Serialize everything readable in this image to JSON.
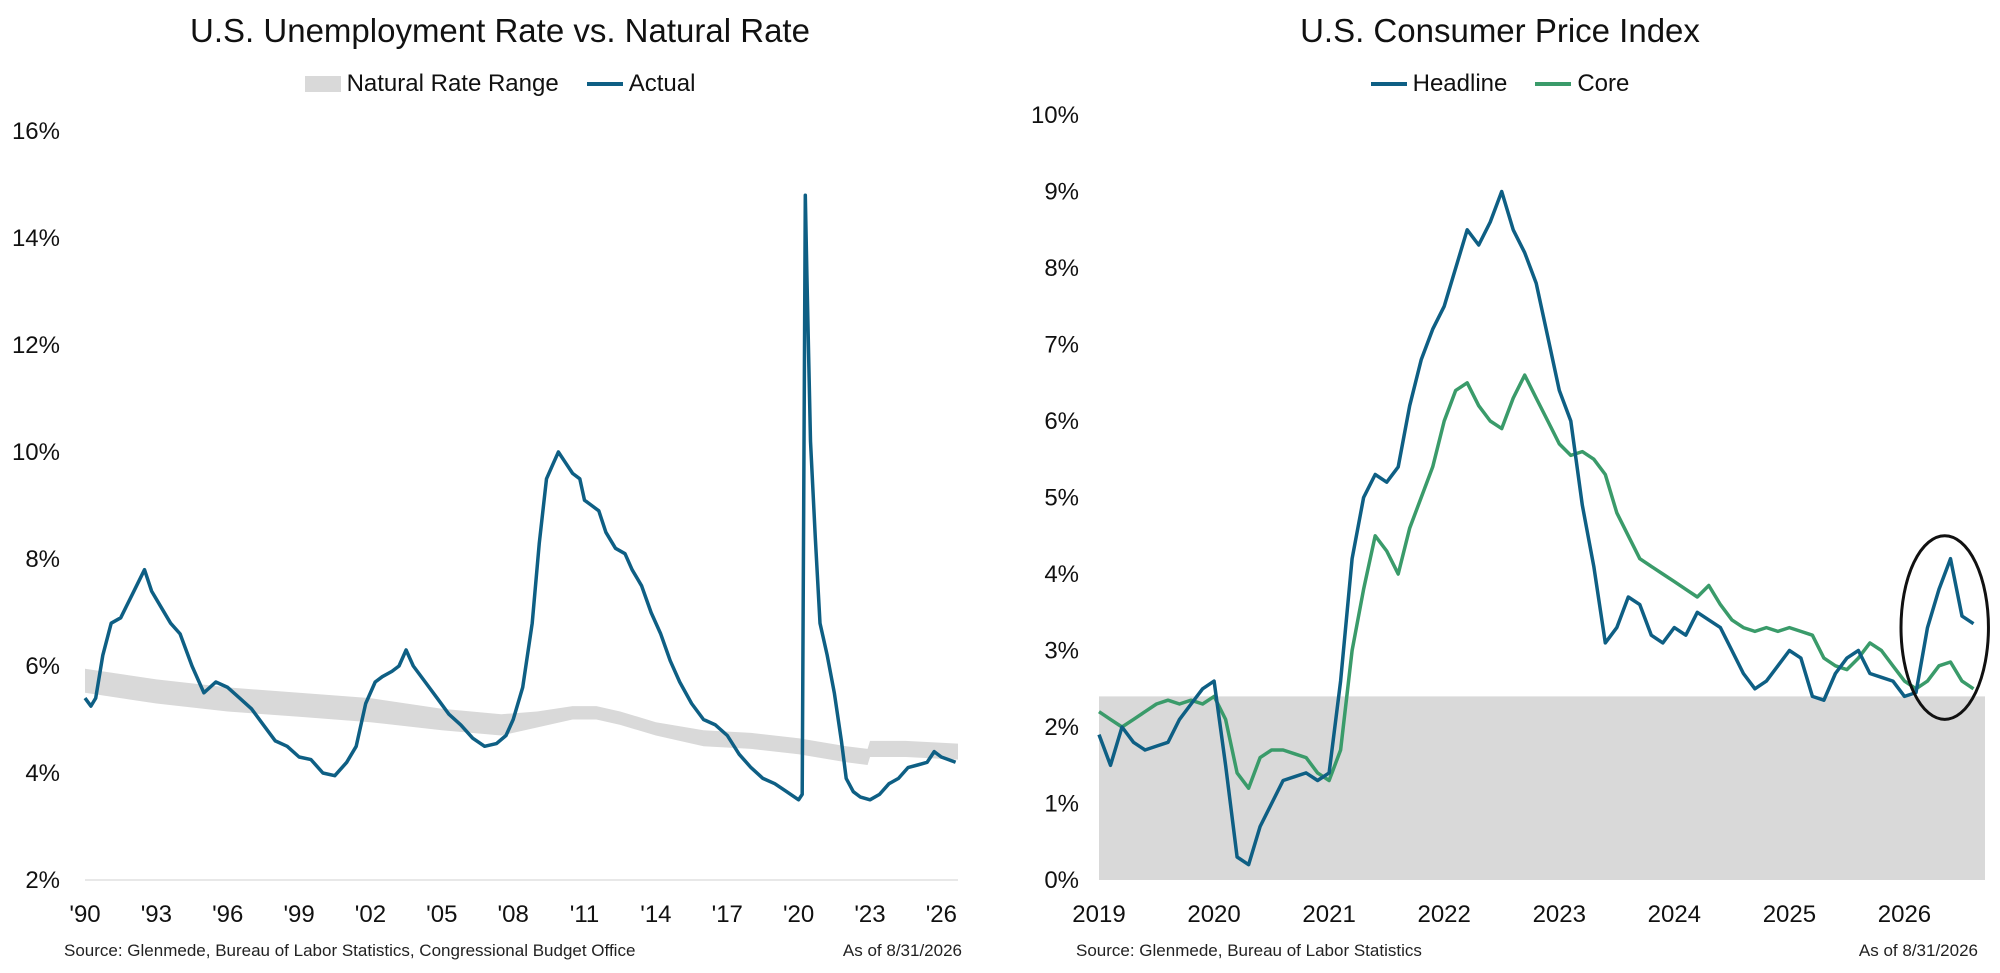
{
  "chart_data": [
    {
      "type": "line",
      "title": "U.S. Unemployment Rate vs. Natural Rate",
      "source": "Source: Glenmede, Bureau of Labor Statistics, Congressional Budget Office",
      "as_of": "As of 8/31/2026",
      "ylim": [
        2,
        16
      ],
      "xlim": [
        1990.0,
        2026.7
      ],
      "yticks": [
        2,
        4,
        6,
        8,
        10,
        12,
        14,
        16
      ],
      "ytick_labels": [
        "2%",
        "4%",
        "6%",
        "8%",
        "10%",
        "12%",
        "14%",
        "16%"
      ],
      "xticks": [
        1990,
        1993,
        1996,
        1999,
        2002,
        2005,
        2008,
        2011,
        2014,
        2017,
        2020,
        2023,
        2026
      ],
      "xtick_labels": [
        "'90",
        "'93",
        "'96",
        "'99",
        "'02",
        "'05",
        "'08",
        "'11",
        "'14",
        "'17",
        "'20",
        "'23",
        "'26"
      ],
      "grid": false,
      "legend_position": "top-center",
      "colors": {
        "natural": "#d9d9d9",
        "actual": "#0e5f84"
      },
      "natural_rate_range": {
        "name": "Natural Rate Range",
        "x": [
          1990.0,
          1993.0,
          1996.0,
          1999.0,
          2002.0,
          2005.0,
          2007.5,
          2009.0,
          2010.5,
          2011.5,
          2012.5,
          2014.0,
          2016.0,
          2018.0,
          2020.0,
          2022.0,
          2022.9,
          2023.0,
          2024.5,
          2026.7
        ],
        "lower": [
          5.5,
          5.3,
          5.15,
          5.05,
          4.95,
          4.8,
          4.7,
          4.85,
          5.0,
          5.0,
          4.9,
          4.7,
          4.5,
          4.45,
          4.35,
          4.2,
          4.15,
          4.3,
          4.3,
          4.25
        ],
        "upper": [
          5.95,
          5.75,
          5.6,
          5.5,
          5.4,
          5.2,
          5.1,
          5.15,
          5.25,
          5.25,
          5.15,
          4.95,
          4.8,
          4.75,
          4.65,
          4.5,
          4.45,
          4.6,
          4.6,
          4.55
        ]
      },
      "series": [
        {
          "name": "Actual",
          "x": [
            1990.0,
            1990.25,
            1990.45,
            1990.75,
            1991.1,
            1991.5,
            1992.0,
            1992.5,
            1992.8,
            1993.2,
            1993.6,
            1994.0,
            1994.5,
            1995.0,
            1995.5,
            1996.0,
            1996.5,
            1997.0,
            1997.5,
            1998.0,
            1998.5,
            1999.0,
            1999.5,
            2000.0,
            2000.5,
            2001.0,
            2001.4,
            2001.8,
            2002.2,
            2002.5,
            2002.9,
            2003.2,
            2003.5,
            2003.8,
            2004.3,
            2004.8,
            2005.3,
            2005.8,
            2006.3,
            2006.8,
            2007.3,
            2007.7,
            2008.0,
            2008.4,
            2008.8,
            2009.1,
            2009.4,
            2009.7,
            2009.9,
            2010.2,
            2010.5,
            2010.8,
            2011.0,
            2011.3,
            2011.6,
            2011.9,
            2012.3,
            2012.7,
            2013.0,
            2013.4,
            2013.8,
            2014.2,
            2014.6,
            2015.0,
            2015.5,
            2016.0,
            2016.5,
            2017.0,
            2017.5,
            2018.0,
            2018.5,
            2019.0,
            2019.5,
            2020.0,
            2020.15,
            2020.28,
            2020.35,
            2020.5,
            2020.7,
            2020.9,
            2021.2,
            2021.5,
            2021.8,
            2022.0,
            2022.3,
            2022.6,
            2023.0,
            2023.4,
            2023.8,
            2024.2,
            2024.6,
            2025.0,
            2025.4,
            2025.7,
            2026.0,
            2026.3,
            2026.6
          ],
          "values": [
            5.4,
            5.25,
            5.4,
            6.2,
            6.8,
            6.9,
            7.35,
            7.8,
            7.4,
            7.1,
            6.8,
            6.6,
            6.0,
            5.5,
            5.7,
            5.6,
            5.4,
            5.2,
            4.9,
            4.6,
            4.5,
            4.3,
            4.25,
            4.0,
            3.95,
            4.2,
            4.5,
            5.3,
            5.7,
            5.8,
            5.9,
            6.0,
            6.3,
            6.0,
            5.7,
            5.4,
            5.1,
            4.9,
            4.65,
            4.5,
            4.55,
            4.7,
            5.0,
            5.6,
            6.8,
            8.3,
            9.5,
            9.8,
            10.0,
            9.8,
            9.6,
            9.5,
            9.1,
            9.0,
            8.9,
            8.5,
            8.2,
            8.1,
            7.8,
            7.5,
            7.0,
            6.6,
            6.1,
            5.7,
            5.3,
            5.0,
            4.9,
            4.7,
            4.35,
            4.1,
            3.9,
            3.8,
            3.65,
            3.5,
            3.6,
            14.8,
            13.3,
            10.2,
            8.4,
            6.8,
            6.2,
            5.5,
            4.6,
            3.9,
            3.65,
            3.55,
            3.5,
            3.6,
            3.8,
            3.9,
            4.1,
            4.15,
            4.2,
            4.4,
            4.3,
            4.25,
            4.2
          ]
        }
      ]
    },
    {
      "type": "line",
      "title": "U.S. Consumer Price Index",
      "source": "Source: Glenmede, Bureau of Labor Statistics",
      "as_of": "As of 8/31/2026",
      "ylim": [
        0,
        10
      ],
      "xlim": [
        2019.0,
        2026.7
      ],
      "yticks": [
        0,
        1,
        2,
        3,
        4,
        5,
        6,
        7,
        8,
        9,
        10
      ],
      "ytick_labels": [
        "0%",
        "1%",
        "2%",
        "3%",
        "4%",
        "5%",
        "6%",
        "7%",
        "8%",
        "9%",
        "10%"
      ],
      "xticks": [
        2019,
        2020,
        2021,
        2022,
        2023,
        2024,
        2025,
        2026
      ],
      "xtick_labels": [
        "2019",
        "2020",
        "2021",
        "2022",
        "2023",
        "2024",
        "2025",
        "2026"
      ],
      "grid": false,
      "legend_position": "top-center",
      "shaded_band": {
        "from": 0,
        "to": 2.4,
        "color": "#d9d9d9"
      },
      "highlight_ellipse": {
        "cx": 2026.35,
        "cy": 3.3,
        "rx": 0.38,
        "ry": 1.2
      },
      "colors": {
        "headline": "#0e5f84",
        "core": "#3a9b6a",
        "band": "#d9d9d9"
      },
      "series": [
        {
          "name": "Headline",
          "x": [
            2019.0,
            2019.1,
            2019.2,
            2019.3,
            2019.4,
            2019.5,
            2019.6,
            2019.7,
            2019.8,
            2019.9,
            2020.0,
            2020.1,
            2020.2,
            2020.3,
            2020.4,
            2020.5,
            2020.6,
            2020.7,
            2020.8,
            2020.9,
            2021.0,
            2021.1,
            2021.2,
            2021.3,
            2021.4,
            2021.5,
            2021.6,
            2021.7,
            2021.8,
            2021.9,
            2022.0,
            2022.1,
            2022.2,
            2022.3,
            2022.4,
            2022.5,
            2022.6,
            2022.7,
            2022.8,
            2022.9,
            2023.0,
            2023.1,
            2023.2,
            2023.3,
            2023.4,
            2023.5,
            2023.6,
            2023.7,
            2023.8,
            2023.9,
            2024.0,
            2024.1,
            2024.2,
            2024.3,
            2024.4,
            2024.5,
            2024.6,
            2024.7,
            2024.8,
            2024.9,
            2025.0,
            2025.1,
            2025.2,
            2025.3,
            2025.4,
            2025.5,
            2025.6,
            2025.7,
            2025.8,
            2025.9,
            2026.0,
            2026.1,
            2026.2,
            2026.3,
            2026.4,
            2026.5,
            2026.6
          ],
          "values": [
            1.9,
            1.5,
            2.0,
            1.8,
            1.7,
            1.75,
            1.8,
            2.1,
            2.3,
            2.5,
            2.6,
            1.5,
            0.3,
            0.2,
            0.7,
            1.0,
            1.3,
            1.35,
            1.4,
            1.3,
            1.4,
            2.6,
            4.2,
            5.0,
            5.3,
            5.2,
            5.4,
            6.2,
            6.8,
            7.2,
            7.5,
            8.0,
            8.5,
            8.3,
            8.6,
            9.0,
            8.5,
            8.2,
            7.8,
            7.1,
            6.4,
            6.0,
            4.9,
            4.1,
            3.1,
            3.3,
            3.7,
            3.6,
            3.2,
            3.1,
            3.3,
            3.2,
            3.5,
            3.4,
            3.3,
            3.0,
            2.7,
            2.5,
            2.6,
            2.8,
            3.0,
            2.9,
            2.4,
            2.35,
            2.7,
            2.9,
            3.0,
            2.7,
            2.65,
            2.6,
            2.4,
            2.45,
            3.3,
            3.8,
            4.2,
            3.45,
            3.35
          ]
        },
        {
          "name": "Core",
          "x": [
            2019.0,
            2019.1,
            2019.2,
            2019.3,
            2019.4,
            2019.5,
            2019.6,
            2019.7,
            2019.8,
            2019.9,
            2020.0,
            2020.1,
            2020.2,
            2020.3,
            2020.4,
            2020.5,
            2020.6,
            2020.7,
            2020.8,
            2020.9,
            2021.0,
            2021.1,
            2021.2,
            2021.3,
            2021.4,
            2021.5,
            2021.6,
            2021.7,
            2021.8,
            2021.9,
            2022.0,
            2022.1,
            2022.2,
            2022.3,
            2022.4,
            2022.5,
            2022.6,
            2022.7,
            2022.8,
            2022.9,
            2023.0,
            2023.1,
            2023.2,
            2023.3,
            2023.4,
            2023.5,
            2023.6,
            2023.7,
            2023.8,
            2023.9,
            2024.0,
            2024.1,
            2024.2,
            2024.3,
            2024.4,
            2024.5,
            2024.6,
            2024.7,
            2024.8,
            2024.9,
            2025.0,
            2025.1,
            2025.2,
            2025.3,
            2025.4,
            2025.5,
            2025.6,
            2025.7,
            2025.8,
            2025.9,
            2026.0,
            2026.1,
            2026.2,
            2026.3,
            2026.4,
            2026.5,
            2026.6
          ],
          "values": [
            2.2,
            2.1,
            2.0,
            2.1,
            2.2,
            2.3,
            2.35,
            2.3,
            2.35,
            2.3,
            2.4,
            2.1,
            1.4,
            1.2,
            1.6,
            1.7,
            1.7,
            1.65,
            1.6,
            1.4,
            1.3,
            1.7,
            3.0,
            3.8,
            4.5,
            4.3,
            4.0,
            4.6,
            5.0,
            5.4,
            6.0,
            6.4,
            6.5,
            6.2,
            6.0,
            5.9,
            6.3,
            6.6,
            6.3,
            6.0,
            5.7,
            5.55,
            5.6,
            5.5,
            5.3,
            4.8,
            4.5,
            4.2,
            4.1,
            4.0,
            3.9,
            3.8,
            3.7,
            3.85,
            3.6,
            3.4,
            3.3,
            3.25,
            3.3,
            3.25,
            3.3,
            3.25,
            3.2,
            2.9,
            2.8,
            2.75,
            2.9,
            3.1,
            3.0,
            2.8,
            2.6,
            2.5,
            2.6,
            2.8,
            2.85,
            2.6,
            2.5
          ]
        }
      ]
    }
  ]
}
